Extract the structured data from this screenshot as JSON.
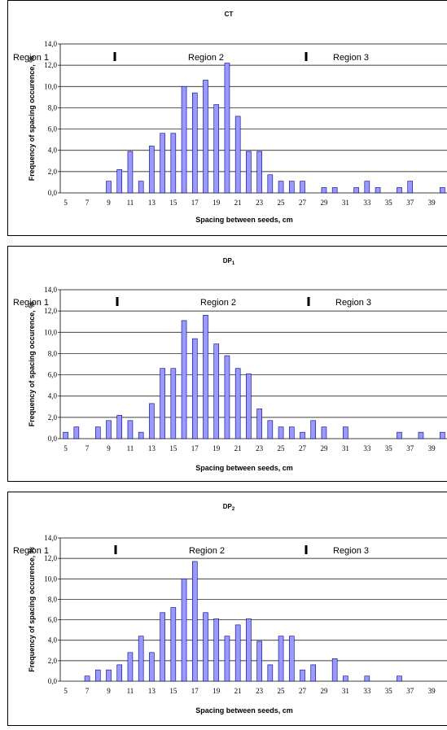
{
  "chart_data": [
    {
      "type": "bar",
      "title": "CT",
      "xlabel": "Spacing between seeds, cm",
      "ylabel": "Frequency of spacing occurence, %",
      "ylim": [
        0,
        14
      ],
      "yticks": [
        "0,0",
        "2,0",
        "4,0",
        "6,0",
        "8,0",
        "10,0",
        "12,0",
        "14,0"
      ],
      "categories": [
        5,
        6,
        7,
        8,
        9,
        10,
        11,
        12,
        13,
        14,
        15,
        16,
        17,
        18,
        19,
        20,
        21,
        22,
        23,
        24,
        25,
        26,
        27,
        28,
        29,
        30,
        31,
        32,
        33,
        34,
        35,
        36,
        37,
        38,
        39,
        40
      ],
      "xtick_labels": [
        "5",
        "7",
        "9",
        "11",
        "13",
        "15",
        "17",
        "19",
        "21",
        "23",
        "25",
        "27",
        "29",
        "31",
        "33",
        "35",
        "37",
        "39"
      ],
      "values": [
        0,
        0,
        0,
        0,
        1.1,
        2.2,
        3.9,
        1.1,
        4.4,
        5.6,
        5.6,
        10.0,
        9.4,
        10.6,
        8.3,
        12.2,
        7.2,
        3.9,
        3.9,
        1.7,
        1.1,
        1.1,
        1.1,
        0,
        0.5,
        0.5,
        0,
        0.5,
        1.1,
        0.5,
        0,
        0.5,
        1.1,
        0,
        0,
        0.5
      ],
      "regions": [
        {
          "label": "Region 1"
        },
        {
          "label": "Region 2"
        },
        {
          "label": "Region 3"
        }
      ],
      "grid": "horizontal",
      "bar_color": "#9999ff"
    },
    {
      "type": "bar",
      "title": "DP",
      "title_sub": "1",
      "xlabel": "Spacing between seeds, cm",
      "ylabel": "Frequency of spacing occurence, %",
      "ylim": [
        0,
        14
      ],
      "yticks": [
        "0,0",
        "2,0",
        "4,0",
        "6,0",
        "8,0",
        "10,0",
        "12,0",
        "14,0"
      ],
      "categories": [
        5,
        6,
        7,
        8,
        9,
        10,
        11,
        12,
        13,
        14,
        15,
        16,
        17,
        18,
        19,
        20,
        21,
        22,
        23,
        24,
        25,
        26,
        27,
        28,
        29,
        30,
        31,
        32,
        33,
        34,
        35,
        36,
        37,
        38,
        39,
        40
      ],
      "xtick_labels": [
        "5",
        "7",
        "9",
        "11",
        "13",
        "15",
        "17",
        "19",
        "21",
        "23",
        "25",
        "27",
        "29",
        "31",
        "33",
        "35",
        "37",
        "39"
      ],
      "values": [
        0.6,
        1.1,
        0,
        1.1,
        1.7,
        2.2,
        1.7,
        0.6,
        3.3,
        6.6,
        6.6,
        11.1,
        9.4,
        11.6,
        8.9,
        7.8,
        6.6,
        6.1,
        2.8,
        1.7,
        1.1,
        1.1,
        0.6,
        1.7,
        1.1,
        0,
        1.1,
        0,
        0,
        0,
        0,
        0.6,
        0,
        0.6,
        0,
        0.6
      ],
      "regions": [
        {
          "label": "Region 1"
        },
        {
          "label": "Region 2"
        },
        {
          "label": "Region 3"
        }
      ],
      "grid": "horizontal",
      "bar_color": "#9999ff"
    },
    {
      "type": "bar",
      "title": "DP",
      "title_sub": "2",
      "xlabel": "Spacing between seeds, cm",
      "ylabel": "Frequency of spacing occurence, %",
      "ylim": [
        0,
        14
      ],
      "yticks": [
        "0,0",
        "2,0",
        "4,0",
        "6,0",
        "8,0",
        "10,0",
        "12,0",
        "14,0"
      ],
      "categories": [
        5,
        6,
        7,
        8,
        9,
        10,
        11,
        12,
        13,
        14,
        15,
        16,
        17,
        18,
        19,
        20,
        21,
        22,
        23,
        24,
        25,
        26,
        27,
        28,
        29,
        30,
        31,
        32,
        33,
        34,
        35,
        36,
        37,
        38,
        39,
        40
      ],
      "xtick_labels": [
        "5",
        "7",
        "9",
        "11",
        "13",
        "15",
        "17",
        "19",
        "21",
        "23",
        "25",
        "27",
        "29",
        "31",
        "33",
        "35",
        "37",
        "39"
      ],
      "values": [
        0,
        0,
        0.5,
        1.1,
        1.1,
        1.6,
        2.8,
        4.4,
        2.8,
        6.7,
        7.2,
        10.0,
        11.7,
        6.7,
        6.1,
        4.4,
        5.5,
        6.1,
        3.9,
        1.6,
        4.4,
        4.4,
        1.1,
        1.6,
        0,
        2.2,
        0.5,
        0,
        0.5,
        0,
        0,
        0.5,
        0,
        0,
        0,
        0
      ],
      "regions": [
        {
          "label": "Region 1"
        },
        {
          "label": "Region 2"
        },
        {
          "label": "Region 3"
        }
      ],
      "grid": "horizontal",
      "bar_color": "#9999ff"
    }
  ]
}
